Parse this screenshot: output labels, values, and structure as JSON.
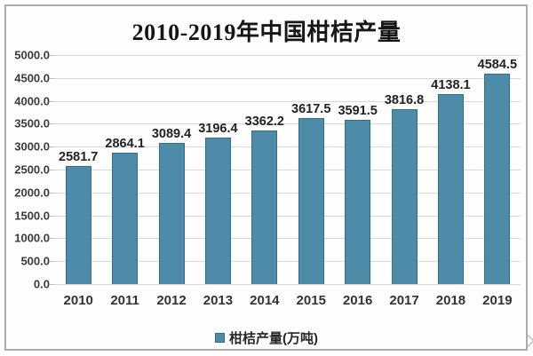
{
  "chart_data": {
    "type": "bar",
    "title": "2010-2019年中国柑桔产量",
    "categories": [
      "2010",
      "2011",
      "2012",
      "2013",
      "2014",
      "2015",
      "2016",
      "2017",
      "2018",
      "2019"
    ],
    "values": [
      2581.7,
      2864.1,
      3089.4,
      3196.4,
      3362.2,
      3617.5,
      3591.5,
      3816.8,
      4138.1,
      4584.5
    ],
    "value_labels": [
      "2581.7",
      "2864.1",
      "3089.4",
      "3196.4",
      "3362.2",
      "3617.5",
      "3591.5",
      "3816.8",
      "4138.1",
      "4584.5"
    ],
    "legend_label": "柑桔产量(万吨)",
    "legend_position": "bottom-center",
    "xlabel": "",
    "ylabel": "",
    "ylim": [
      0,
      5000
    ],
    "y_tick_step": 500,
    "y_ticks": [
      "5000.0",
      "4500.0",
      "4000.0",
      "3500.0",
      "3000.0",
      "2500.0",
      "2000.0",
      "1500.0",
      "1000.0",
      "500.0",
      "0.0"
    ],
    "grid": "horizontal"
  },
  "colors": {
    "bar_fill": "#4d8ba9",
    "bar_border": "#2f6e8e",
    "gridline": "#d9d9d9",
    "tick": "#bdbdbd",
    "frame_border": "#ababab",
    "title_text": "#161616",
    "label_text": "#222222"
  }
}
